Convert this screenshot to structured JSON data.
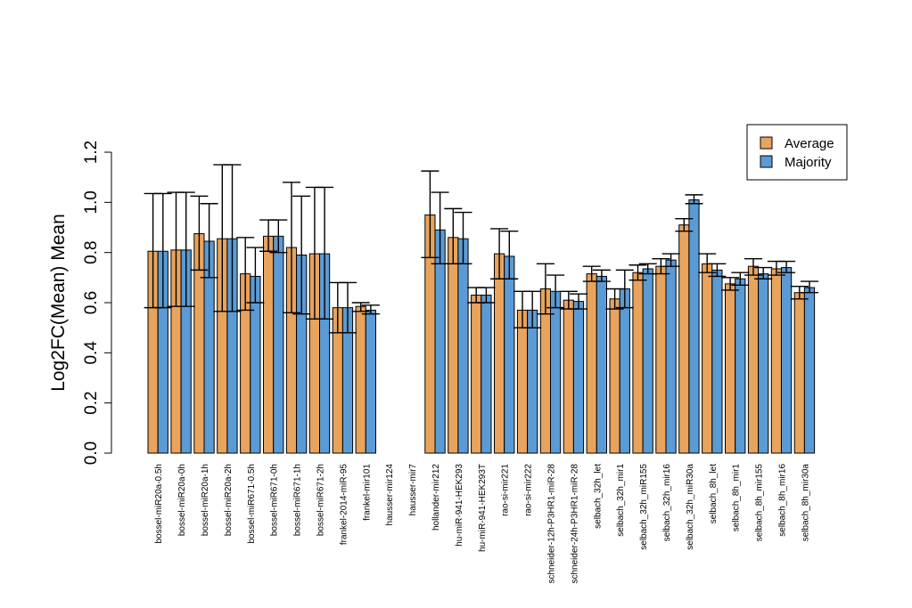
{
  "chart_data": {
    "type": "bar",
    "title": "",
    "xlabel": "",
    "ylabel": "Log2FC(Mean) Mean",
    "ylim": [
      0,
      1.2
    ],
    "yticks": [
      "0.0",
      "0.2",
      "0.4",
      "0.6",
      "0.8",
      "1.0",
      "1.2"
    ],
    "categories": [
      "bossel-miR20a-0.5h",
      "bossel-miR20a-0h",
      "bossel-miR20a-1h",
      "bossel-miR20a-2h",
      "bossel-miR671-0.5h",
      "bossel-miR671-0h",
      "bossel-miR671-1h",
      "bossel-miR671-2h",
      "frankel-2014-miR-95",
      "frankel-mir101",
      "hausser-mir124",
      "hausser-mir7",
      "hollander-mir212",
      "hu-miR-941-HEK293",
      "hu-miR-941-HEK293T",
      "rao-si-mir221",
      "rao-si-mir222",
      "schneider-12h-P3HR1-miR-28",
      "schneider-24h-P3HR1-miR-28",
      "selbach_32h_let",
      "selbach_32h_mir1",
      "selbach_32h_miR155",
      "selbach_32h_mir16",
      "selbach_32h_miR30a",
      "selbach_8h_let",
      "selbach_8h_mir1",
      "selbach_8h_mir155",
      "selbach_8h_mir16",
      "selbach_8h_mir30a"
    ],
    "series": [
      {
        "name": "Average",
        "color": "#E8A35C",
        "values": [
          0.805,
          0.81,
          0.875,
          0.855,
          0.715,
          0.865,
          0.82,
          0.795,
          0.58,
          0.585,
          null,
          null,
          0.95,
          0.86,
          0.63,
          0.795,
          0.57,
          0.655,
          0.61,
          0.715,
          0.615,
          0.72,
          0.745,
          0.91,
          0.755,
          0.675,
          0.745,
          0.735,
          0.64
        ],
        "err_low": [
          0.58,
          0.585,
          0.73,
          0.565,
          0.57,
          0.805,
          0.56,
          0.535,
          0.48,
          0.565,
          null,
          null,
          0.78,
          0.755,
          0.6,
          0.695,
          0.5,
          0.555,
          0.575,
          0.685,
          0.575,
          0.69,
          0.715,
          0.885,
          0.72,
          0.65,
          0.71,
          0.71,
          0.615
        ],
        "err_high": [
          1.035,
          1.04,
          1.025,
          1.15,
          0.86,
          0.93,
          1.08,
          1.06,
          0.68,
          0.6,
          null,
          null,
          1.125,
          0.975,
          0.66,
          0.895,
          0.645,
          0.755,
          0.645,
          0.745,
          0.655,
          0.75,
          0.775,
          0.935,
          0.795,
          0.7,
          0.775,
          0.765,
          0.665
        ]
      },
      {
        "name": "Majority",
        "color": "#5B9BD5",
        "values": [
          0.805,
          0.81,
          0.845,
          0.855,
          0.705,
          0.865,
          0.79,
          0.795,
          0.58,
          0.57,
          null,
          null,
          0.89,
          0.855,
          0.63,
          0.785,
          0.57,
          0.645,
          0.605,
          0.705,
          0.655,
          0.735,
          0.77,
          1.01,
          0.73,
          0.695,
          0.715,
          0.74,
          0.66
        ],
        "err_low": [
          0.58,
          0.585,
          0.7,
          0.565,
          0.6,
          0.8,
          0.555,
          0.535,
          0.48,
          0.555,
          null,
          null,
          0.755,
          0.755,
          0.6,
          0.695,
          0.5,
          0.58,
          0.575,
          0.685,
          0.58,
          0.715,
          0.745,
          0.995,
          0.705,
          0.67,
          0.695,
          0.72,
          0.64
        ],
        "err_high": [
          1.035,
          1.04,
          0.995,
          1.15,
          0.82,
          0.93,
          1.025,
          1.06,
          0.68,
          0.59,
          null,
          null,
          1.04,
          0.96,
          0.66,
          0.885,
          0.645,
          0.71,
          0.635,
          0.73,
          0.73,
          0.755,
          0.795,
          1.03,
          0.755,
          0.72,
          0.74,
          0.765,
          0.685
        ]
      }
    ],
    "legend": {
      "position": "top-right",
      "entries": [
        "Average",
        "Majority"
      ]
    }
  }
}
